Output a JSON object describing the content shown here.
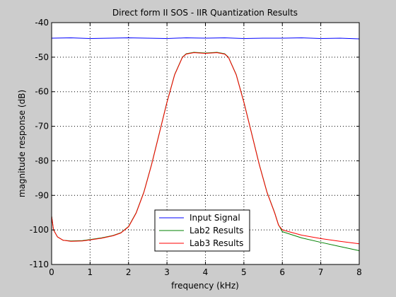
{
  "chart_data": {
    "type": "line",
    "title": "Direct form II SOS - IIR Quantization Results",
    "xlabel": "frequency (kHz)",
    "ylabel": "magnitude response (dB)",
    "xlim": [
      0,
      8
    ],
    "ylim": [
      -110,
      -40
    ],
    "xticks": [
      0,
      1,
      2,
      3,
      4,
      5,
      6,
      7,
      8
    ],
    "yticks": [
      -110,
      -100,
      -90,
      -80,
      -70,
      -60,
      -50,
      -40
    ],
    "grid": true,
    "legend_position": "bottom-center",
    "series": [
      {
        "name": "Input Signal",
        "color": "#0000ff",
        "x": [
          0,
          0.5,
          1,
          1.5,
          2,
          2.5,
          3,
          3.5,
          4,
          4.5,
          5,
          5.5,
          6,
          6.5,
          7,
          7.5,
          8
        ],
        "y": [
          -44.5,
          -44.4,
          -44.6,
          -44.5,
          -44.4,
          -44.5,
          -44.6,
          -44.4,
          -44.5,
          -44.4,
          -44.6,
          -44.5,
          -44.5,
          -44.4,
          -44.6,
          -44.5,
          -44.7
        ]
      },
      {
        "name": "Lab2 Results",
        "color": "#008000",
        "x": [
          0,
          0.05,
          0.15,
          0.3,
          0.5,
          0.8,
          1,
          1.3,
          1.6,
          1.8,
          2,
          2.2,
          2.4,
          2.6,
          2.8,
          3,
          3.2,
          3.4,
          3.5,
          3.7,
          4,
          4.3,
          4.5,
          4.6,
          4.8,
          5,
          5.2,
          5.4,
          5.6,
          5.8,
          5.9,
          6,
          6.5,
          7,
          7.5,
          8
        ],
        "y": [
          -96,
          -100,
          -102,
          -103,
          -103.2,
          -103.1,
          -102.8,
          -102.3,
          -101.6,
          -100.8,
          -99,
          -95,
          -89,
          -81,
          -72,
          -63,
          -55,
          -50,
          -49,
          -48.6,
          -48.8,
          -48.6,
          -49,
          -50,
          -55,
          -63,
          -72,
          -81,
          -89,
          -95,
          -98.5,
          -100.5,
          -102.3,
          -103.6,
          -104.8,
          -106
        ]
      },
      {
        "name": "Lab3 Results",
        "color": "#ff0000",
        "x": [
          0,
          0.05,
          0.15,
          0.3,
          0.5,
          0.8,
          1,
          1.3,
          1.6,
          1.8,
          2,
          2.2,
          2.4,
          2.6,
          2.8,
          3,
          3.2,
          3.4,
          3.5,
          3.7,
          4,
          4.3,
          4.5,
          4.6,
          4.8,
          5,
          5.2,
          5.4,
          5.6,
          5.8,
          5.9,
          6,
          6.5,
          7,
          7.5,
          8
        ],
        "y": [
          -96,
          -100,
          -102,
          -103,
          -103.3,
          -103.2,
          -102.9,
          -102.4,
          -101.7,
          -100.9,
          -99.1,
          -95.1,
          -89.1,
          -81.1,
          -72.1,
          -63.1,
          -55.1,
          -50.1,
          -49.1,
          -48.7,
          -48.9,
          -48.7,
          -49.1,
          -50.1,
          -55.1,
          -63.1,
          -72.1,
          -81.1,
          -89.1,
          -95.1,
          -98.6,
          -100,
          -101.5,
          -102.5,
          -103.3,
          -104
        ]
      }
    ]
  }
}
